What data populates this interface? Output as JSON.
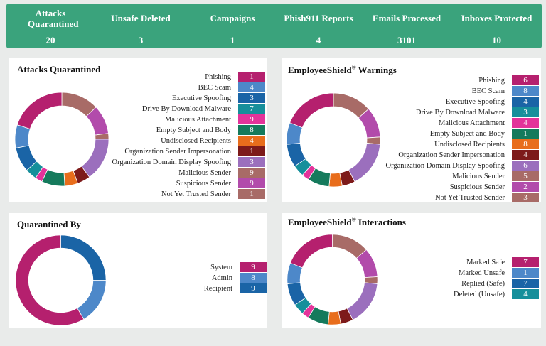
{
  "stats": [
    {
      "label": "Attacks Quarantined",
      "value": "20"
    },
    {
      "label": "Unsafe Deleted",
      "value": "3"
    },
    {
      "label": "Campaigns",
      "value": "1"
    },
    {
      "label": "Phish911 Reports",
      "value": "4"
    },
    {
      "label": "Emails Processed",
      "value": "3101"
    },
    {
      "label": "Inboxes Protected",
      "value": "10"
    }
  ],
  "panels": {
    "attacks_quarantined": {
      "title": "Attacks Quarantined",
      "legend": [
        {
          "label": "Phishing",
          "value": "1",
          "color": "#b5206e"
        },
        {
          "label": "BEC Scam",
          "value": "4",
          "color": "#4d88c9"
        },
        {
          "label": "Executive Spoofing",
          "value": "3",
          "color": "#1a64a6"
        },
        {
          "label": "Drive By Download Malware",
          "value": "7",
          "color": "#168f9b"
        },
        {
          "label": "Malicious Attachment",
          "value": "9",
          "color": "#e3339a"
        },
        {
          "label": "Empty Subject and Body",
          "value": "8",
          "color": "#157a5c"
        },
        {
          "label": "Undisclosed Recipients",
          "value": "4",
          "color": "#e86d1c"
        },
        {
          "label": "Organization Sender Impersonation",
          "value": "1",
          "color": "#7d1a1a"
        },
        {
          "label": "Organization Domain Display Spoofing",
          "value": "3",
          "color": "#9b6fbd"
        },
        {
          "label": "Malicious Sender",
          "value": "9",
          "color": "#a86b67"
        },
        {
          "label": "Suspicious Sender",
          "value": "9",
          "color": "#b24bab"
        },
        {
          "label": "Not Yet Trusted Sender",
          "value": "1",
          "color": "#a86b67"
        }
      ]
    },
    "employeeshield_warnings": {
      "title": "EmployeeShield",
      "title_mark": "®",
      "title_suffix": "Warnings",
      "legend": [
        {
          "label": "Phishing",
          "value": "6",
          "color": "#b5206e"
        },
        {
          "label": "BEC Scam",
          "value": "8",
          "color": "#4d88c9"
        },
        {
          "label": "Executive Spoofing",
          "value": "4",
          "color": "#1a64a6"
        },
        {
          "label": "Drive By Download Malware",
          "value": "3",
          "color": "#168f9b"
        },
        {
          "label": "Malicious Attachment",
          "value": "4",
          "color": "#e3339a"
        },
        {
          "label": "Empty Subject and Body",
          "value": "1",
          "color": "#157a5c"
        },
        {
          "label": "Undisclosed Recipients",
          "value": "8",
          "color": "#e86d1c"
        },
        {
          "label": "Organization Sender Impersonation",
          "value": "4",
          "color": "#7d1a1a"
        },
        {
          "label": "Organization Domain Display Spoofing",
          "value": "6",
          "color": "#9b6fbd"
        },
        {
          "label": "Malicious Sender",
          "value": "5",
          "color": "#a86b67"
        },
        {
          "label": "Suspicious Sender",
          "value": "2",
          "color": "#b24bab"
        },
        {
          "label": "Not Yet Trusted Sender",
          "value": "3",
          "color": "#a86b67"
        }
      ]
    },
    "quarantined_by": {
      "title": "Quarantined By",
      "legend": [
        {
          "label": "System",
          "value": "9",
          "color": "#b5206e"
        },
        {
          "label": "Admin",
          "value": "8",
          "color": "#4d88c9"
        },
        {
          "label": "Recipient",
          "value": "9",
          "color": "#1a64a6"
        }
      ]
    },
    "employeeshield_interactions": {
      "title": "EmployeeShield",
      "title_mark": "®",
      "title_suffix": "Interactions",
      "legend": [
        {
          "label": "Marked Safe",
          "value": "7",
          "color": "#b5206e"
        },
        {
          "label": "Marked Unsafe",
          "value": "1",
          "color": "#4d88c9"
        },
        {
          "label": "Replied (Safe)",
          "value": "7",
          "color": "#1a64a6"
        },
        {
          "label": "Deleted (Unsafe)",
          "value": "4",
          "color": "#168f9b"
        }
      ]
    }
  },
  "donut_segments": {
    "attacks": [
      {
        "color": "#a86b67",
        "frac": 0.13
      },
      {
        "color": "#b24bab",
        "frac": 0.1
      },
      {
        "color": "#a86b67",
        "frac": 0.02
      },
      {
        "color": "#9b6fbd",
        "frac": 0.15
      },
      {
        "color": "#7d1a1a",
        "frac": 0.045
      },
      {
        "color": "#e86d1c",
        "frac": 0.045
      },
      {
        "color": "#157a5c",
        "frac": 0.08
      },
      {
        "color": "#e3339a",
        "frac": 0.025
      },
      {
        "color": "#168f9b",
        "frac": 0.04
      },
      {
        "color": "#1a64a6",
        "frac": 0.085
      },
      {
        "color": "#4d88c9",
        "frac": 0.08
      },
      {
        "color": "#b5206e",
        "frac": 0.2
      }
    ],
    "warnings": [
      {
        "color": "#a86b67",
        "frac": 0.135
      },
      {
        "color": "#b24bab",
        "frac": 0.105
      },
      {
        "color": "#a86b67",
        "frac": 0.025
      },
      {
        "color": "#9b6fbd",
        "frac": 0.16
      },
      {
        "color": "#7d1a1a",
        "frac": 0.045
      },
      {
        "color": "#e86d1c",
        "frac": 0.045
      },
      {
        "color": "#157a5c",
        "frac": 0.075
      },
      {
        "color": "#e3339a",
        "frac": 0.025
      },
      {
        "color": "#168f9b",
        "frac": 0.04
      },
      {
        "color": "#1a64a6",
        "frac": 0.08
      },
      {
        "color": "#4d88c9",
        "frac": 0.075
      },
      {
        "color": "#b5206e",
        "frac": 0.19
      }
    ],
    "quarantined_by": [
      {
        "color": "#1a64a6",
        "frac": 0.25
      },
      {
        "color": "#4d88c9",
        "frac": 0.165
      },
      {
        "color": "#b5206e",
        "frac": 0.585
      }
    ],
    "interactions": [
      {
        "color": "#a86b67",
        "frac": 0.135
      },
      {
        "color": "#b24bab",
        "frac": 0.105
      },
      {
        "color": "#a86b67",
        "frac": 0.025
      },
      {
        "color": "#9b6fbd",
        "frac": 0.16
      },
      {
        "color": "#7d1a1a",
        "frac": 0.045
      },
      {
        "color": "#e86d1c",
        "frac": 0.045
      },
      {
        "color": "#157a5c",
        "frac": 0.075
      },
      {
        "color": "#e3339a",
        "frac": 0.025
      },
      {
        "color": "#168f9b",
        "frac": 0.04
      },
      {
        "color": "#1a64a6",
        "frac": 0.08
      },
      {
        "color": "#4d88c9",
        "frac": 0.075
      },
      {
        "color": "#b5206e",
        "frac": 0.19
      }
    ]
  }
}
